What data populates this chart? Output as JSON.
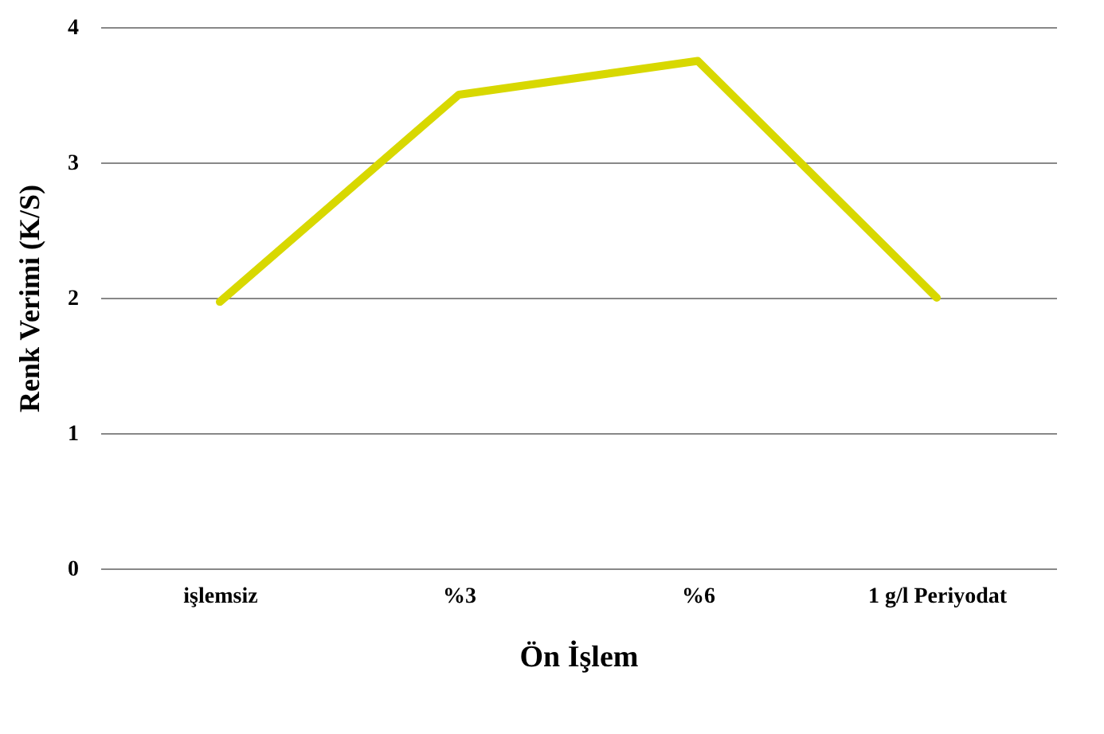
{
  "chart_data": {
    "type": "line",
    "xlabel": "Ön İşlem",
    "ylabel": "Renk Verimi (K/S)",
    "categories": [
      "işlemsiz",
      "%3",
      "%6",
      "1 g/l Periyodat"
    ],
    "series": [
      {
        "color": "#d8d800",
        "values": [
          1.97,
          3.5,
          3.75,
          2.0
        ]
      }
    ],
    "ylim": [
      0,
      4
    ],
    "yticks": [
      0,
      1,
      2,
      3,
      4
    ],
    "grid": "y",
    "marker": "none",
    "line_style": "solid"
  }
}
